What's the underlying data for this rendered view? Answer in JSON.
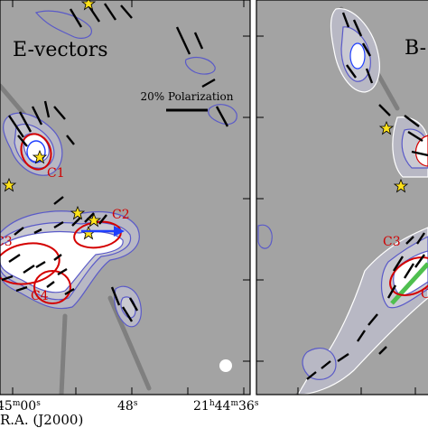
{
  "chart_data": {
    "type": "scatter",
    "panels": [
      {
        "title": "E-vectors"
      },
      {
        "title": "B-"
      }
    ],
    "scale_bar_label": "20% Polarization",
    "annotations": [
      "C1",
      "C2",
      "C3",
      "C4"
    ],
    "annotations_right": [
      "C3"
    ],
    "xlabel": "R.A. (J2000)",
    "x_ticks": [
      {
        "h": "",
        "hs": "",
        "m": "45",
        "ms": "m",
        "s": "00",
        "ss": "s"
      },
      {
        "h": "",
        "hs": "",
        "m": "",
        "ms": "",
        "s": "48",
        "ss": "s"
      },
      {
        "h": "21",
        "hs": "h",
        "m": "44",
        "ms": "m",
        "s": "36",
        "ss": "s"
      }
    ],
    "colors": {
      "background": "#a3a3a3",
      "contour": "#5a5ac8",
      "ellipse": "#d40000",
      "vector": "#000000",
      "arrow": "#1f3fff",
      "star": "#ffe21a",
      "green_line": "#4fbf4f"
    }
  }
}
